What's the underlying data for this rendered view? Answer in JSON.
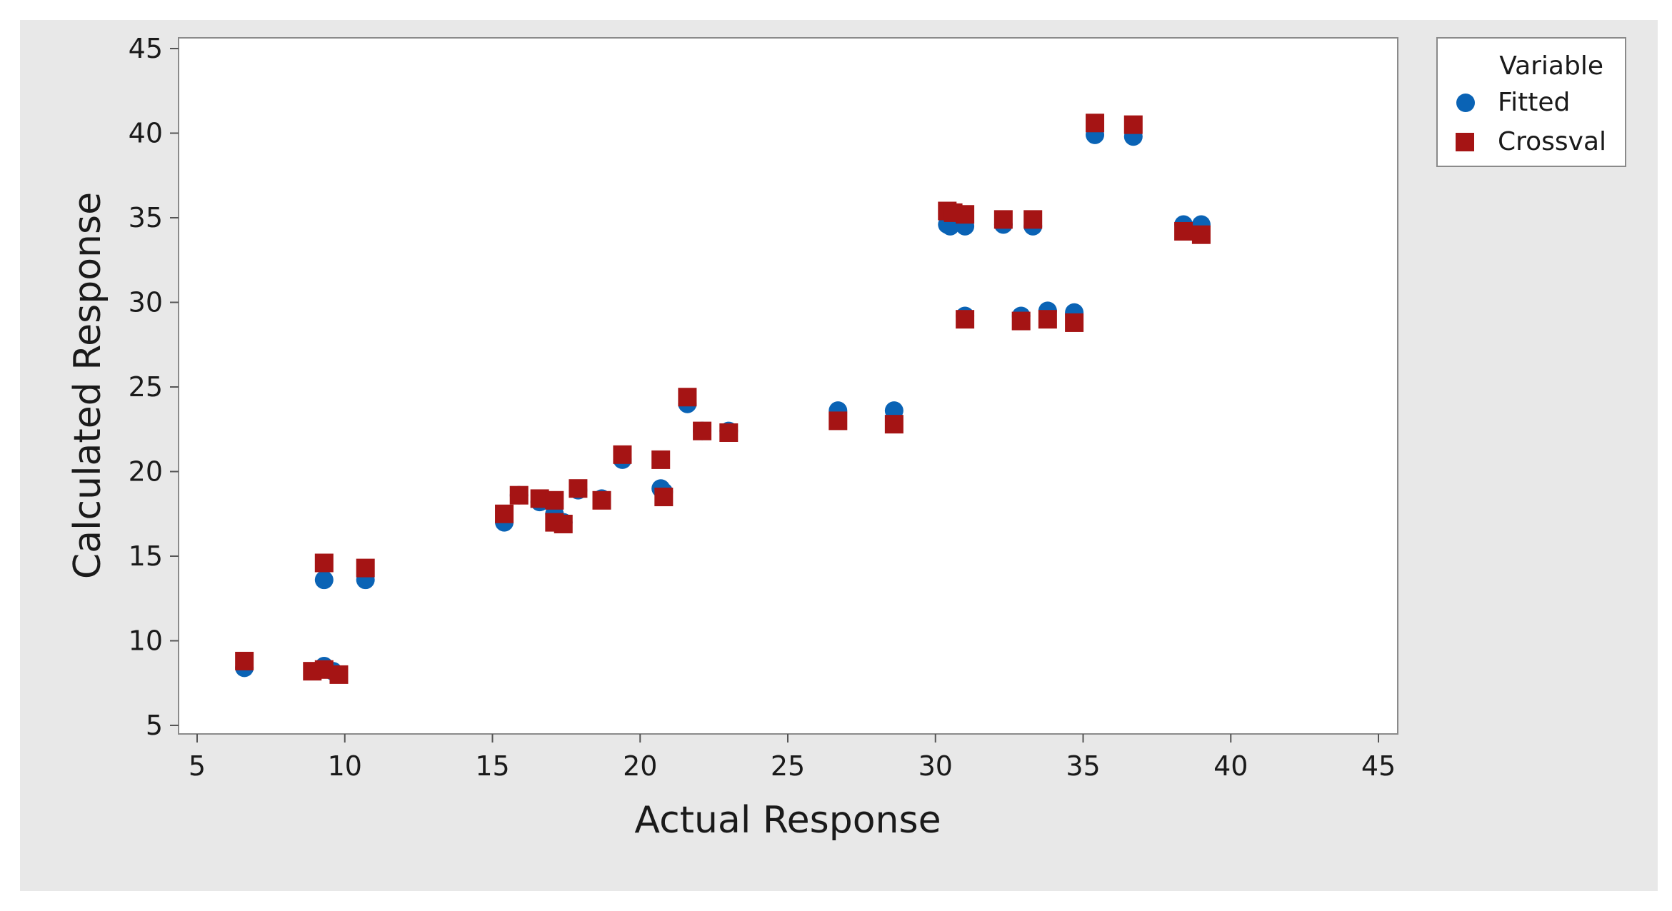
{
  "chart_data": {
    "type": "scatter",
    "title": "",
    "xlabel": "Actual Response",
    "ylabel": "Calculated Response",
    "xlim": [
      5,
      45
    ],
    "ylim": [
      5,
      45
    ],
    "xticks": [
      "5",
      "10",
      "15",
      "20",
      "25",
      "30",
      "35",
      "40",
      "45"
    ],
    "yticks": [
      "5",
      "10",
      "15",
      "20",
      "25",
      "30",
      "35",
      "40",
      "45"
    ],
    "grid": false,
    "legend": {
      "title": "Variable",
      "placement": "top-right-outside",
      "entries": [
        "Fitted",
        "Crossval"
      ]
    },
    "colors": {
      "Fitted": "#0a63b5",
      "Crossval": "#a51414",
      "background": "#e8e8e8",
      "plot_area": "#ffffff"
    },
    "series": [
      {
        "name": "Fitted",
        "marker": "circle",
        "x": [
          6.6,
          9.3,
          9.3,
          9.6,
          10.7,
          15.4,
          15.9,
          16.6,
          17.1,
          17.4,
          17.9,
          18.7,
          19.4,
          20.7,
          20.8,
          21.6,
          22.1,
          23.0,
          26.7,
          28.6,
          30.4,
          30.5,
          31.0,
          31.0,
          32.3,
          32.9,
          33.3,
          33.8,
          34.7,
          35.4,
          36.7,
          38.4,
          39.0
        ],
        "y": [
          8.4,
          13.6,
          8.5,
          8.2,
          13.6,
          17.0,
          18.6,
          18.2,
          17.5,
          17.0,
          18.9,
          18.4,
          20.7,
          19.0,
          18.8,
          24.0,
          22.4,
          22.4,
          23.6,
          23.6,
          34.6,
          34.5,
          34.5,
          29.2,
          34.6,
          29.2,
          34.5,
          29.5,
          29.4,
          39.9,
          39.8,
          34.6,
          34.6
        ]
      },
      {
        "name": "Crossval",
        "marker": "square",
        "x": [
          6.6,
          8.9,
          9.3,
          9.3,
          9.8,
          10.7,
          15.4,
          15.9,
          16.6,
          17.1,
          17.1,
          17.4,
          17.9,
          18.7,
          19.4,
          20.7,
          20.8,
          21.6,
          22.1,
          23.0,
          26.7,
          28.6,
          30.4,
          30.6,
          31.0,
          31.0,
          32.3,
          32.9,
          33.3,
          33.8,
          34.7,
          35.4,
          36.7,
          38.4,
          39.0
        ],
        "y": [
          8.8,
          8.2,
          8.3,
          14.6,
          8.0,
          14.3,
          17.5,
          18.6,
          18.4,
          18.3,
          17.0,
          16.9,
          19.0,
          18.3,
          21.0,
          20.7,
          18.5,
          24.4,
          22.4,
          22.3,
          23.0,
          22.8,
          35.4,
          35.3,
          35.2,
          29.0,
          34.9,
          28.9,
          34.9,
          29.0,
          28.8,
          40.6,
          40.5,
          34.2,
          34.0
        ]
      }
    ]
  }
}
